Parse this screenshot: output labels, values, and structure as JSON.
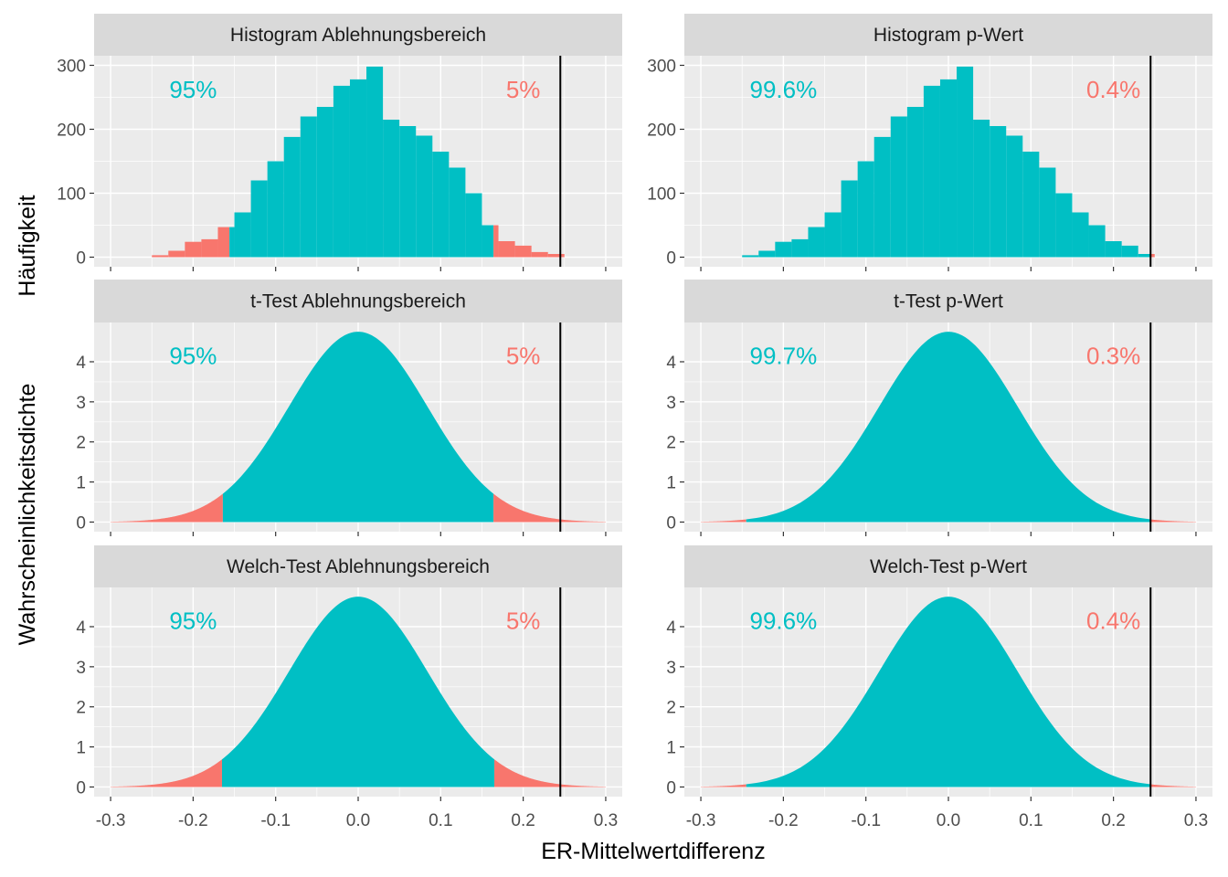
{
  "colors": {
    "inside": "#00BFC4",
    "outside": "#F8766D",
    "panel_bg": "#EBEBEB",
    "strip_bg": "#D9D9D9",
    "grid": "#FFFFFF",
    "line": "#000000"
  },
  "chart_data": {
    "type": "facet_grid",
    "xlabel": "ER-Mittelwertdifferenz",
    "ylabel_top": "Häufigkeit",
    "ylabel_density": "Wahrscheinlichkeitsdichte",
    "x_range": [
      -0.32,
      0.32
    ],
    "x_ticks": [
      -0.3,
      -0.2,
      -0.1,
      0.0,
      0.1,
      0.2,
      0.3
    ],
    "x_tick_labels": [
      "-0.3",
      "-0.2",
      "-0.1",
      "0.0",
      "0.1",
      "0.2",
      "0.3"
    ],
    "observed_difference": 0.245,
    "panels": [
      {
        "title": "Histogram Ablehnungsbereich",
        "kind": "histogram",
        "ylim": [
          -15,
          315
        ],
        "y_ticks": [
          0,
          100,
          200,
          300
        ],
        "y_tick_labels": [
          "0",
          "100",
          "200",
          "300"
        ],
        "bin_width": 0.02,
        "bin_starts": [
          -0.25,
          -0.23,
          -0.21,
          -0.19,
          -0.17,
          -0.15,
          -0.13,
          -0.11,
          -0.09,
          -0.07,
          -0.05,
          -0.03,
          -0.01,
          0.01,
          0.03,
          0.05,
          0.07,
          0.09,
          0.11,
          0.13,
          0.15,
          0.17,
          0.19,
          0.21,
          0.23
        ],
        "counts": [
          3,
          10,
          24,
          28,
          47,
          70,
          120,
          150,
          188,
          220,
          235,
          268,
          278,
          298,
          215,
          205,
          190,
          165,
          140,
          100,
          50,
          25,
          18,
          8,
          5
        ],
        "inside_fraction": [
          0,
          0,
          0,
          0,
          0.3,
          1,
          1,
          1,
          1,
          1,
          1,
          1,
          1,
          1,
          1,
          1,
          1,
          1,
          1,
          1,
          0.7,
          0,
          0,
          0,
          0
        ],
        "critical_bounds": [
          -0.164,
          0.164
        ],
        "inside_label": "95%",
        "outside_label": "5%"
      },
      {
        "title": "Histogram p-Wert",
        "kind": "histogram",
        "ylim": [
          -15,
          315
        ],
        "y_ticks": [
          0,
          100,
          200,
          300
        ],
        "y_tick_labels": [
          "0",
          "100",
          "200",
          "300"
        ],
        "bin_width": 0.02,
        "bin_starts": [
          -0.25,
          -0.23,
          -0.21,
          -0.19,
          -0.17,
          -0.15,
          -0.13,
          -0.11,
          -0.09,
          -0.07,
          -0.05,
          -0.03,
          -0.01,
          0.01,
          0.03,
          0.05,
          0.07,
          0.09,
          0.11,
          0.13,
          0.15,
          0.17,
          0.19,
          0.21,
          0.23
        ],
        "counts": [
          3,
          10,
          24,
          28,
          47,
          70,
          120,
          150,
          188,
          220,
          235,
          268,
          278,
          298,
          215,
          205,
          190,
          165,
          140,
          100,
          70,
          50,
          25,
          18,
          5
        ],
        "inside_fraction": [
          1,
          1,
          1,
          1,
          1,
          1,
          1,
          1,
          1,
          1,
          1,
          1,
          1,
          1,
          1,
          1,
          1,
          1,
          1,
          1,
          1,
          1,
          1,
          1,
          0.75
        ],
        "critical_bounds": [
          -0.245,
          0.245
        ],
        "inside_label": "99.6%",
        "outside_label": "0.4%"
      },
      {
        "title": "t-Test Ablehnungsbereich",
        "kind": "density",
        "ylim": [
          -0.24,
          4.98
        ],
        "y_ticks": [
          0,
          1,
          2,
          3,
          4
        ],
        "y_tick_labels": [
          "0",
          "1",
          "2",
          "3",
          "4"
        ],
        "mean": 0.0,
        "sd": 0.084,
        "x_span": [
          -0.3,
          0.3
        ],
        "critical_bounds": [
          -0.164,
          0.164
        ],
        "inside_label": "95%",
        "outside_label": "5%"
      },
      {
        "title": "t-Test p-Wert",
        "kind": "density",
        "ylim": [
          -0.24,
          4.98
        ],
        "y_ticks": [
          0,
          1,
          2,
          3,
          4
        ],
        "y_tick_labels": [
          "0",
          "1",
          "2",
          "3",
          "4"
        ],
        "mean": 0.0,
        "sd": 0.084,
        "x_span": [
          -0.3,
          0.3
        ],
        "critical_bounds": [
          -0.245,
          0.245
        ],
        "inside_label": "99.7%",
        "outside_label": "0.3%"
      },
      {
        "title": "Welch-Test Ablehnungsbereich",
        "kind": "density",
        "ylim": [
          -0.24,
          4.98
        ],
        "y_ticks": [
          0,
          1,
          2,
          3,
          4
        ],
        "y_tick_labels": [
          "0",
          "1",
          "2",
          "3",
          "4"
        ],
        "mean": 0.0,
        "sd": 0.084,
        "x_span": [
          -0.3,
          0.3
        ],
        "critical_bounds": [
          -0.165,
          0.165
        ],
        "inside_label": "95%",
        "outside_label": "5%"
      },
      {
        "title": "Welch-Test p-Wert",
        "kind": "density",
        "ylim": [
          -0.24,
          4.98
        ],
        "y_ticks": [
          0,
          1,
          2,
          3,
          4
        ],
        "y_tick_labels": [
          "0",
          "1",
          "2",
          "3",
          "4"
        ],
        "mean": 0.0,
        "sd": 0.084,
        "x_span": [
          -0.3,
          0.3
        ],
        "critical_bounds": [
          -0.245,
          0.245
        ],
        "inside_label": "99.6%",
        "outside_label": "0.4%"
      }
    ]
  }
}
